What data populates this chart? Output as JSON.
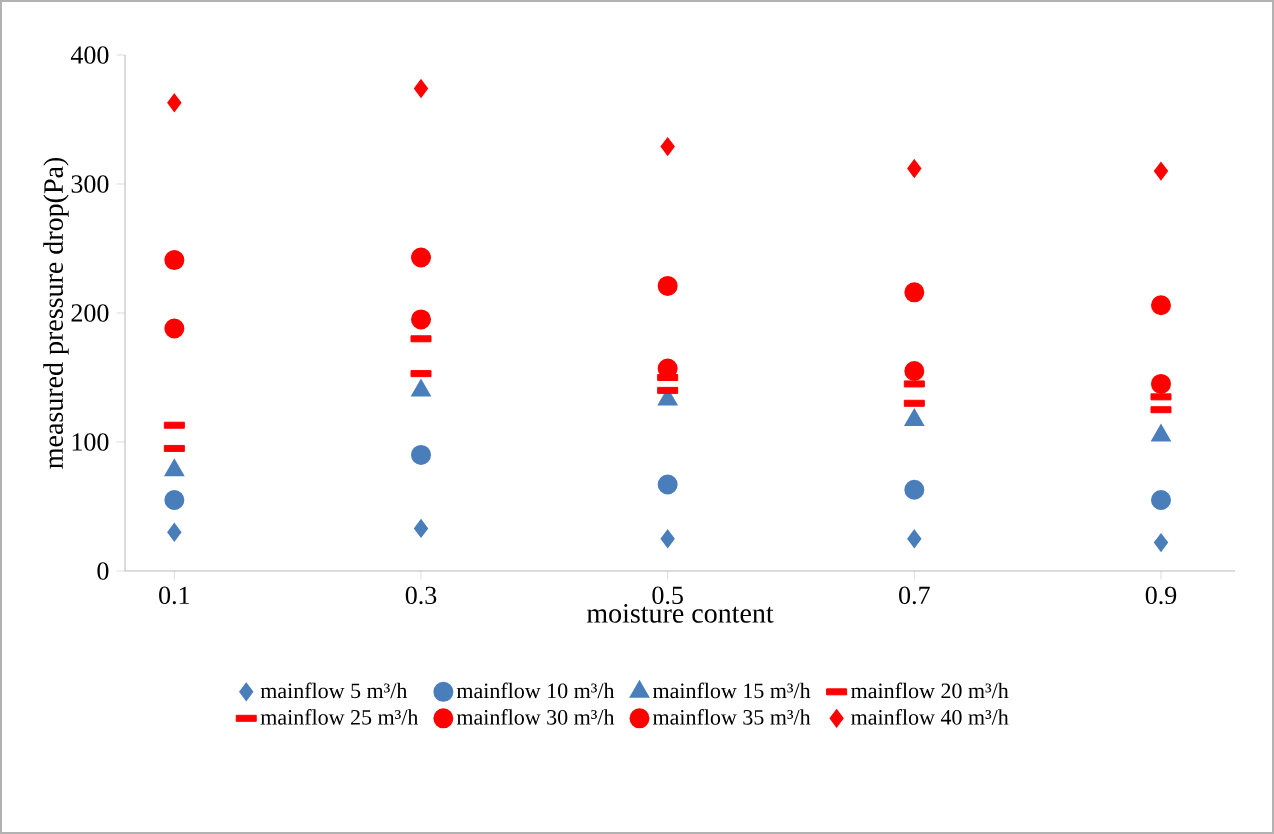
{
  "chart_data": {
    "type": "scatter",
    "xlabel": "moisture content",
    "ylabel": "measured pressure drop(Pa)",
    "categories": [
      "0.1",
      "0.3",
      "0.5",
      "0.7",
      "0.9"
    ],
    "ylim": [
      0,
      400
    ],
    "yticks": [
      0,
      100,
      200,
      300,
      400
    ],
    "grid": false,
    "legend": "bottom",
    "series": [
      {
        "name": "mainflow 5 m³/h",
        "color": "#4a7ebb",
        "marker": "diamond",
        "values": [
          30,
          33,
          25,
          25,
          22
        ]
      },
      {
        "name": "mainflow 10 m³/h",
        "color": "#4a7ebb",
        "marker": "circle",
        "values": [
          55,
          90,
          67,
          63,
          55
        ]
      },
      {
        "name": "mainflow 15 m³/h",
        "color": "#4a7ebb",
        "marker": "triangle",
        "values": [
          78,
          140,
          133,
          117,
          105
        ]
      },
      {
        "name": "mainflow 20 m³/h",
        "color": "#ff0000",
        "marker": "square",
        "values": [
          95,
          153,
          140,
          130,
          125
        ]
      },
      {
        "name": "mainflow 25 m³/h",
        "color": "#ff0000",
        "marker": "square",
        "values": [
          113,
          180,
          150,
          145,
          135
        ]
      },
      {
        "name": "mainflow 30 m³/h",
        "color": "#ff0000",
        "marker": "circle",
        "values": [
          188,
          195,
          157,
          155,
          145
        ]
      },
      {
        "name": "mainflow 35 m³/h",
        "color": "#ff0000",
        "marker": "circle",
        "values": [
          241,
          243,
          221,
          216,
          206
        ]
      },
      {
        "name": "mainflow 40 m³/h",
        "color": "#ff0000",
        "marker": "diamond",
        "values": [
          363,
          374,
          329,
          312,
          310
        ]
      }
    ]
  }
}
